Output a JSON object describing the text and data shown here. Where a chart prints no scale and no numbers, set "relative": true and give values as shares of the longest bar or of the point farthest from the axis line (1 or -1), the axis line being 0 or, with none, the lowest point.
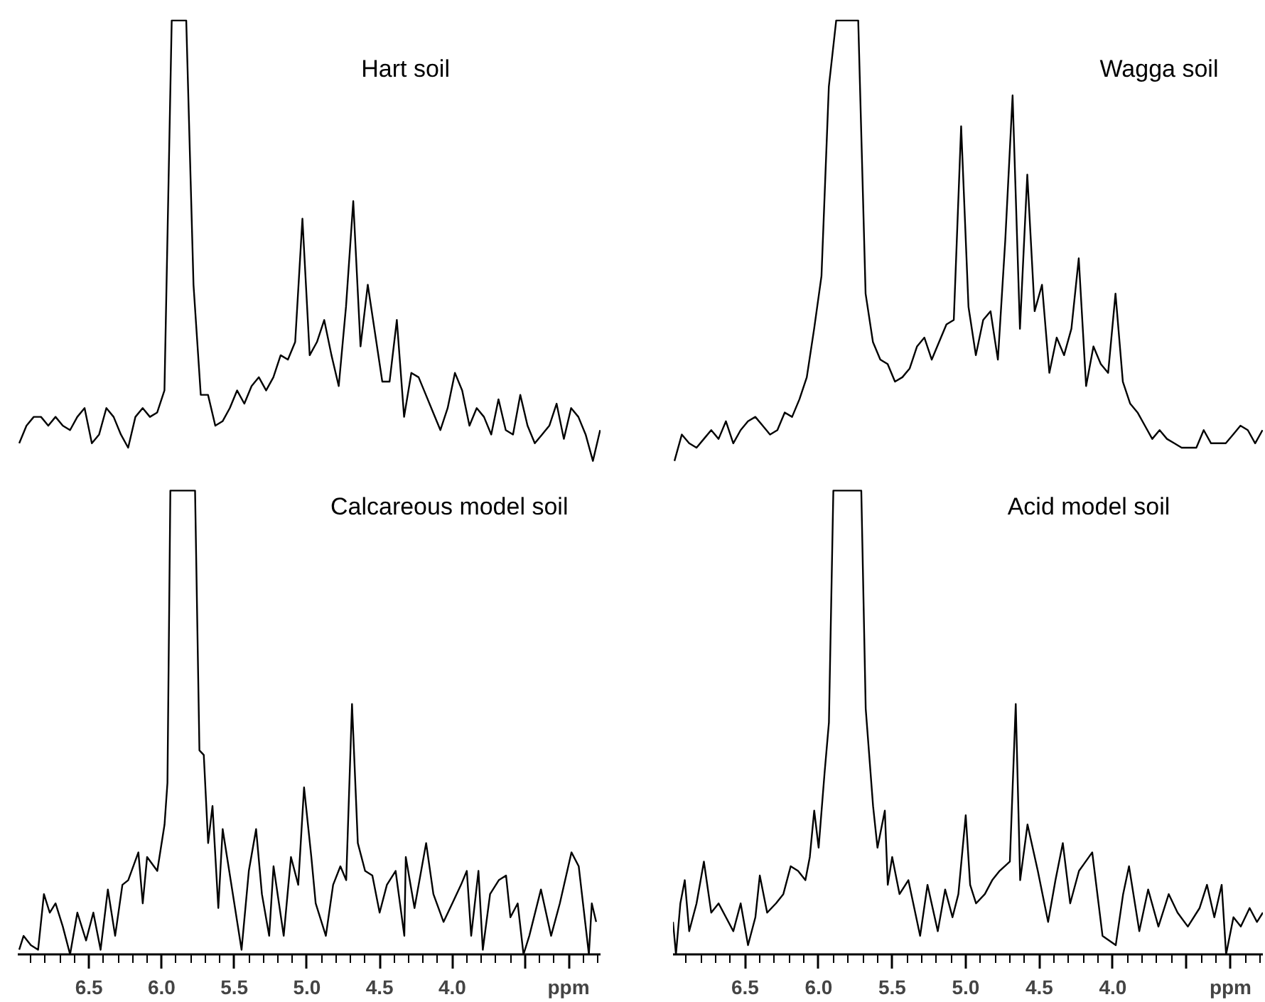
{
  "chart_data": [
    {
      "type": "line",
      "title": "Hart soil",
      "relative": true,
      "color": "#000000",
      "categories": [
        null,
        null,
        null,
        null,
        null,
        null,
        null,
        null,
        null,
        null,
        null,
        null,
        null,
        null,
        null,
        null,
        null,
        null,
        null,
        null,
        null,
        null,
        null,
        null,
        null,
        null,
        null,
        null,
        null,
        null,
        null,
        null,
        null,
        null,
        null,
        null,
        null,
        null,
        null,
        null,
        null,
        null,
        null,
        null,
        null,
        null,
        null,
        null,
        null,
        null,
        null,
        null,
        null,
        null,
        null,
        null,
        null,
        null,
        null,
        null,
        null,
        null,
        null,
        null,
        null,
        null,
        null,
        null,
        null,
        null,
        null,
        null,
        null,
        null,
        null,
        null,
        null,
        null,
        null,
        null,
        null
      ],
      "values": [
        0.04,
        0.08,
        0.1,
        0.1,
        0.08,
        0.1,
        0.08,
        0.07,
        0.1,
        0.12,
        0.04,
        0.06,
        0.12,
        0.1,
        0.06,
        0.03,
        0.1,
        0.12,
        0.1,
        0.11,
        0.16,
        1.0,
        1.0,
        1.0,
        0.4,
        0.15,
        0.15,
        0.08,
        0.09,
        0.12,
        0.16,
        0.13,
        0.17,
        0.19,
        0.16,
        0.19,
        0.24,
        0.23,
        0.27,
        0.55,
        0.24,
        0.27,
        0.32,
        0.24,
        0.17,
        0.35,
        0.59,
        0.26,
        0.4,
        0.29,
        0.18,
        0.18,
        0.32,
        0.1,
        0.2,
        0.19,
        0.15,
        0.11,
        0.07,
        0.12,
        0.2,
        0.16,
        0.08,
        0.12,
        0.1,
        0.06,
        0.14,
        0.07,
        0.06,
        0.15,
        0.08,
        0.04,
        0.06,
        0.08,
        0.13,
        0.05,
        0.12,
        0.1,
        0.06,
        0.0,
        0.07
      ]
    },
    {
      "type": "line",
      "title": "Wagga soil",
      "relative": true,
      "color": "#000000",
      "categories": [
        null,
        null,
        null,
        null,
        null,
        null,
        null,
        null,
        null,
        null,
        null,
        null,
        null,
        null,
        null,
        null,
        null,
        null,
        null,
        null,
        null,
        null,
        null,
        null,
        null,
        null,
        null,
        null,
        null,
        null,
        null,
        null,
        null,
        null,
        null,
        null,
        null,
        null,
        null,
        null,
        null,
        null,
        null,
        null,
        null,
        null,
        null,
        null,
        null,
        null,
        null,
        null,
        null,
        null,
        null,
        null,
        null,
        null,
        null,
        null,
        null,
        null,
        null,
        null,
        null,
        null,
        null,
        null,
        null,
        null,
        null,
        null,
        null,
        null,
        null,
        null,
        null,
        null,
        null,
        null,
        null
      ],
      "values": [
        0.0,
        0.06,
        0.04,
        0.03,
        0.05,
        0.07,
        0.05,
        0.09,
        0.04,
        0.07,
        0.09,
        0.1,
        0.08,
        0.06,
        0.07,
        0.11,
        0.1,
        0.14,
        0.19,
        0.3,
        0.42,
        0.85,
        1.0,
        1.0,
        1.0,
        1.0,
        0.38,
        0.27,
        0.23,
        0.22,
        0.18,
        0.19,
        0.21,
        0.26,
        0.28,
        0.23,
        0.27,
        0.31,
        0.32,
        0.76,
        0.35,
        0.24,
        0.32,
        0.34,
        0.23,
        0.5,
        0.83,
        0.3,
        0.65,
        0.34,
        0.4,
        0.2,
        0.28,
        0.24,
        0.3,
        0.46,
        0.17,
        0.26,
        0.22,
        0.2,
        0.38,
        0.18,
        0.13,
        0.11,
        0.08,
        0.05,
        0.07,
        0.05,
        0.04,
        0.03,
        0.03,
        0.03,
        0.07,
        0.04,
        0.04,
        0.04,
        0.06,
        0.08,
        0.07,
        0.04,
        0.07
      ]
    },
    {
      "type": "line",
      "title": "Calcareous model soil",
      "relative": true,
      "color": "#000000",
      "xlim": [
        6.99,
        2.98
      ],
      "tick_labels": "x",
      "xticks": [
        6.5,
        {
          "value": 6,
          "label": "6.0"
        },
        5.5,
        {
          "value": 5,
          "label": "5.0"
        },
        4.5,
        {
          "value": 4,
          "label": "4.0"
        },
        {
          "value": 3.5,
          "label": null
        },
        {
          "value": 3.2,
          "label": "ppm"
        }
      ],
      "x": [
        6.98,
        6.95,
        6.9,
        6.85,
        6.81,
        6.77,
        6.73,
        6.68,
        6.63,
        6.58,
        6.52,
        6.47,
        6.42,
        6.37,
        6.32,
        6.27,
        6.23,
        6.16,
        6.13,
        6.1,
        6.03,
        5.98,
        5.96,
        5.94,
        5.77,
        5.74,
        5.71,
        5.68,
        5.65,
        5.61,
        5.58,
        5.55,
        5.48,
        5.45,
        5.4,
        5.35,
        5.31,
        5.26,
        5.23,
        5.16,
        5.11,
        5.06,
        5.02,
        4.97,
        4.94,
        4.87,
        4.82,
        4.77,
        4.73,
        4.69,
        4.65,
        4.6,
        4.55,
        4.5,
        4.45,
        4.39,
        4.33,
        4.32,
        4.26,
        4.18,
        4.13,
        4.06,
        4.0,
        3.94,
        3.9,
        3.87,
        3.82,
        3.79,
        3.74,
        3.68,
        3.63,
        3.6,
        3.55,
        3.51,
        3.47,
        3.39,
        3.32,
        3.26,
        3.18,
        3.13,
        3.06,
        3.04,
        3.01
      ],
      "values": [
        0.01,
        0.04,
        0.02,
        0.01,
        0.13,
        0.09,
        0.11,
        0.06,
        0.0,
        0.09,
        0.03,
        0.09,
        0.01,
        0.14,
        0.04,
        0.15,
        0.16,
        0.22,
        0.11,
        0.21,
        0.18,
        0.28,
        0.37,
        1.0,
        1.0,
        0.44,
        0.43,
        0.24,
        0.32,
        0.1,
        0.27,
        0.21,
        0.07,
        0.01,
        0.18,
        0.27,
        0.13,
        0.04,
        0.19,
        0.04,
        0.21,
        0.15,
        0.36,
        0.21,
        0.11,
        0.04,
        0.15,
        0.19,
        0.16,
        0.54,
        0.24,
        0.18,
        0.17,
        0.09,
        0.15,
        0.18,
        0.04,
        0.21,
        0.1,
        0.24,
        0.13,
        0.07,
        0.11,
        0.15,
        0.18,
        0.04,
        0.18,
        0.01,
        0.13,
        0.16,
        0.17,
        0.08,
        0.11,
        0.0,
        0.04,
        0.14,
        0.04,
        0.11,
        0.22,
        0.19,
        0.0,
        0.11,
        0.07
      ]
    },
    {
      "type": "line",
      "title": "Acid model soil",
      "relative": true,
      "color": "#000000",
      "xlim": [
        6.99,
        2.98
      ],
      "tick_labels": "x",
      "xticks": [
        6.5,
        {
          "value": 6,
          "label": "6.0"
        },
        5.5,
        {
          "value": 5,
          "label": "5.0"
        },
        4.5,
        {
          "value": 4,
          "label": "4.0"
        },
        {
          "value": 3.5,
          "label": null
        },
        {
          "value": 3.2,
          "label": "ppm"
        }
      ],
      "x": [
        6.99,
        6.97,
        6.94,
        6.91,
        6.88,
        6.83,
        6.78,
        6.73,
        6.68,
        6.63,
        6.58,
        6.53,
        6.48,
        6.43,
        6.4,
        6.35,
        6.29,
        6.24,
        6.19,
        6.14,
        6.09,
        6.06,
        6.03,
        6.0,
        5.96,
        5.93,
        5.9,
        5.71,
        5.68,
        5.63,
        5.6,
        5.55,
        5.53,
        5.5,
        5.45,
        5.39,
        5.31,
        5.26,
        5.19,
        5.14,
        5.09,
        5.05,
        5.0,
        4.97,
        4.93,
        4.87,
        4.82,
        4.77,
        4.7,
        4.66,
        4.63,
        4.58,
        4.51,
        4.44,
        4.39,
        4.34,
        4.29,
        4.23,
        4.14,
        4.07,
        3.98,
        3.93,
        3.89,
        3.82,
        3.76,
        3.69,
        3.62,
        3.56,
        3.49,
        3.41,
        3.36,
        3.31,
        3.26,
        3.23,
        3.18,
        3.13,
        3.07,
        3.02,
        2.98
      ],
      "values": [
        0.07,
        0.0,
        0.11,
        0.16,
        0.05,
        0.11,
        0.2,
        0.09,
        0.11,
        0.08,
        0.05,
        0.11,
        0.02,
        0.08,
        0.17,
        0.09,
        0.11,
        0.13,
        0.19,
        0.18,
        0.16,
        0.21,
        0.31,
        0.23,
        0.39,
        0.5,
        1.0,
        1.0,
        0.53,
        0.32,
        0.23,
        0.31,
        0.15,
        0.21,
        0.13,
        0.16,
        0.04,
        0.15,
        0.05,
        0.14,
        0.08,
        0.13,
        0.3,
        0.15,
        0.11,
        0.13,
        0.16,
        0.18,
        0.2,
        0.54,
        0.16,
        0.28,
        0.18,
        0.07,
        0.16,
        0.24,
        0.11,
        0.18,
        0.22,
        0.04,
        0.02,
        0.13,
        0.19,
        0.05,
        0.14,
        0.06,
        0.13,
        0.09,
        0.06,
        0.1,
        0.15,
        0.08,
        0.15,
        0.0,
        0.08,
        0.06,
        0.1,
        0.07,
        0.09
      ]
    }
  ]
}
